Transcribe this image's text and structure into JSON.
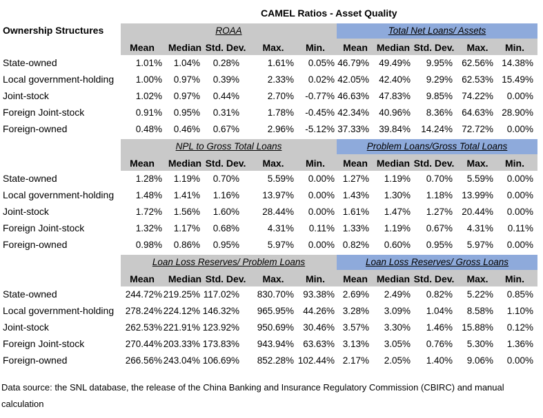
{
  "title": "CAMEL Ratios - Asset Quality",
  "ownership_header": "Ownership Structures",
  "stat_headers": [
    "Mean",
    "Median",
    "Std. Dev.",
    "Max.",
    "Min."
  ],
  "colors": {
    "gray_band": "#c9c9c9",
    "blue_band": "#8eaadb"
  },
  "rows": [
    "State-owned",
    "Local government-holding",
    "Joint-stock",
    "Foreign Joint-stock",
    "Foreign-owned"
  ],
  "sections": [
    {
      "left_title": "ROAA",
      "right_title": "Total Net Loans/ Assets",
      "data": [
        [
          "1.01%",
          "1.04%",
          "0.28%",
          "1.61%",
          "0.05%",
          "46.79%",
          "49.49%",
          "9.95%",
          "62.56%",
          "14.38%"
        ],
        [
          "1.00%",
          "0.97%",
          "0.39%",
          "2.33%",
          "0.02%",
          "42.05%",
          "42.40%",
          "9.29%",
          "62.53%",
          "15.49%"
        ],
        [
          "1.02%",
          "0.97%",
          "0.44%",
          "2.70%",
          "-0.77%",
          "46.63%",
          "47.83%",
          "9.85%",
          "74.22%",
          "0.00%"
        ],
        [
          "0.91%",
          "0.95%",
          "0.31%",
          "1.78%",
          "-0.45%",
          "42.34%",
          "40.96%",
          "8.36%",
          "64.63%",
          "28.90%"
        ],
        [
          "0.48%",
          "0.46%",
          "0.67%",
          "2.96%",
          "-5.12%",
          "37.33%",
          "39.84%",
          "14.24%",
          "72.72%",
          "0.00%"
        ]
      ]
    },
    {
      "left_title": "NPL to Gross Total Loans",
      "right_title": "Problem Loans/Gross Total Loans",
      "data": [
        [
          "1.28%",
          "1.19%",
          "0.70%",
          "5.59%",
          "0.00%",
          "1.27%",
          "1.19%",
          "0.70%",
          "5.59%",
          "0.00%"
        ],
        [
          "1.48%",
          "1.41%",
          "1.16%",
          "13.97%",
          "0.00%",
          "1.43%",
          "1.30%",
          "1.18%",
          "13.99%",
          "0.00%"
        ],
        [
          "1.72%",
          "1.56%",
          "1.60%",
          "28.44%",
          "0.00%",
          "1.61%",
          "1.47%",
          "1.27%",
          "20.44%",
          "0.00%"
        ],
        [
          "1.32%",
          "1.17%",
          "0.68%",
          "4.31%",
          "0.11%",
          "1.33%",
          "1.19%",
          "0.67%",
          "4.31%",
          "0.11%"
        ],
        [
          "0.98%",
          "0.86%",
          "0.95%",
          "5.97%",
          "0.00%",
          "0.82%",
          "0.60%",
          "0.95%",
          "5.97%",
          "0.00%"
        ]
      ]
    },
    {
      "left_title": "Loan Loss Reserves/ Problem Loans",
      "right_title": "Loan Loss Reserves/ Gross Loans",
      "data": [
        [
          "244.72%",
          "219.25%",
          "117.02%",
          "830.70%",
          "93.38%",
          "2.69%",
          "2.49%",
          "0.82%",
          "5.22%",
          "0.85%"
        ],
        [
          "278.24%",
          "224.12%",
          "146.32%",
          "965.95%",
          "44.26%",
          "3.28%",
          "3.09%",
          "1.04%",
          "8.58%",
          "1.10%"
        ],
        [
          "262.53%",
          "221.91%",
          "123.92%",
          "950.69%",
          "30.46%",
          "3.57%",
          "3.30%",
          "1.46%",
          "15.88%",
          "0.12%"
        ],
        [
          "270.44%",
          "203.33%",
          "173.83%",
          "943.94%",
          "63.63%",
          "3.13%",
          "3.05%",
          "0.76%",
          "5.30%",
          "1.36%"
        ],
        [
          "266.56%",
          "243.04%",
          "106.69%",
          "852.28%",
          "102.44%",
          "2.17%",
          "2.05%",
          "1.40%",
          "9.06%",
          "0.00%"
        ]
      ]
    }
  ],
  "footnote": "Data source: the SNL database, the release of the China Banking and Insurance Regulatory Commission (CBIRC) and manual calculation"
}
